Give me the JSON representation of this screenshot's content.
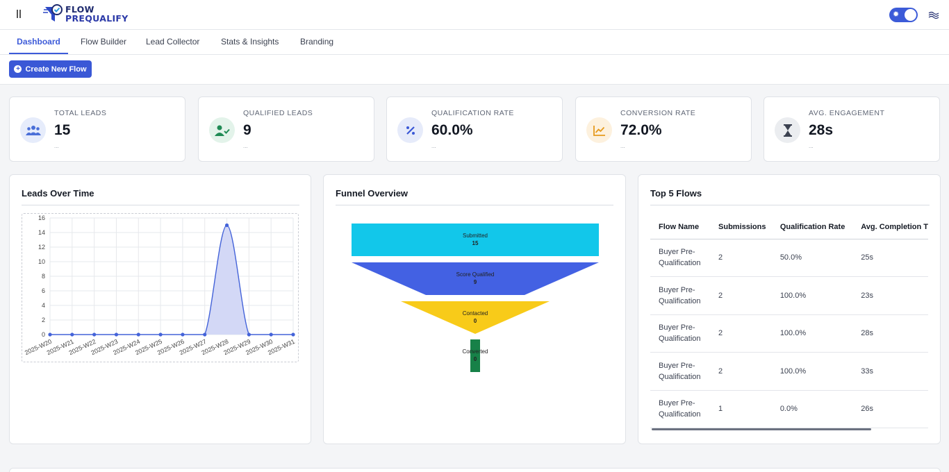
{
  "header": {
    "brand_line1": "FLOW",
    "brand_line2": "PREQUALIFY",
    "theme_toggle_icon": "sun-icon",
    "user_flag_icon": "country-flag-icon"
  },
  "tabs": [
    {
      "label": "Dashboard",
      "active": true
    },
    {
      "label": "Flow Builder",
      "active": false
    },
    {
      "label": "Lead Collector",
      "active": false
    },
    {
      "label": "Stats & Insights",
      "active": false
    },
    {
      "label": "Branding",
      "active": false
    }
  ],
  "actions": {
    "create_flow_label": "Create New Flow"
  },
  "stats": [
    {
      "label": "TOTAL LEADS",
      "value": "15",
      "sub": "...",
      "icon": "users-icon",
      "color": "#4a6fd8",
      "bg": "#e6ecfb"
    },
    {
      "label": "QUALIFIED LEADS",
      "value": "9",
      "sub": "...",
      "icon": "user-check-icon",
      "color": "#1f8a54",
      "bg": "#e3f3ea"
    },
    {
      "label": "QUALIFICATION RATE",
      "value": "60.0%",
      "sub": "...",
      "icon": "percent-icon",
      "color": "#3a58d6",
      "bg": "#e6ebfa"
    },
    {
      "label": "CONVERSION RATE",
      "value": "72.0%",
      "sub": "...",
      "icon": "line-chart-icon",
      "color": "#e69a1c",
      "bg": "#fdf1de"
    },
    {
      "label": "AVG. ENGAGEMENT",
      "value": "28s",
      "sub": "...",
      "icon": "hourglass-icon",
      "color": "#3b4150",
      "bg": "#ebedf0"
    }
  ],
  "panels": {
    "leads_title": "Leads Over Time",
    "funnel_title": "Funnel Overview",
    "flows_title": "Top 5 Flows"
  },
  "chart_data": [
    {
      "type": "area",
      "x": [
        "2025-W20",
        "2025-W21",
        "2025-W22",
        "2025-W23",
        "2025-W24",
        "2025-W25",
        "2025-W26",
        "2025-W27",
        "2025-W28",
        "2025-W29",
        "2025-W30",
        "2025-W31"
      ],
      "series": [
        {
          "values": [
            0,
            0,
            0,
            0,
            0,
            0,
            0,
            0,
            15,
            0,
            0,
            0
          ]
        }
      ],
      "ylim": [
        0,
        16
      ],
      "yticks": [
        0,
        2,
        4,
        6,
        8,
        10,
        12,
        14,
        16
      ],
      "grid": true,
      "color": "#4463d9",
      "fill": "#d3d8f6"
    },
    {
      "type": "funnel",
      "categories": [
        "Submitted",
        "Score Qualified",
        "Contacted",
        "Converted"
      ],
      "values": [
        15,
        9,
        0,
        0
      ],
      "colors": [
        "#12c7ea",
        "#4361e3",
        "#f8cb19",
        "#178148"
      ]
    }
  ],
  "table": {
    "headers": [
      "Flow Name",
      "Submissions",
      "Qualification Rate",
      "Avg. Completion T"
    ],
    "rows": [
      [
        "Buyer Pre-Qualification",
        "2",
        "50.0%",
        "25s"
      ],
      [
        "Buyer Pre-Qualification",
        "2",
        "100.0%",
        "23s"
      ],
      [
        "Buyer Pre-Qualification",
        "2",
        "100.0%",
        "28s"
      ],
      [
        "Buyer Pre-Qualification",
        "2",
        "100.0%",
        "33s"
      ],
      [
        "Buyer Pre-Qualification",
        "1",
        "0.0%",
        "26s"
      ]
    ]
  }
}
